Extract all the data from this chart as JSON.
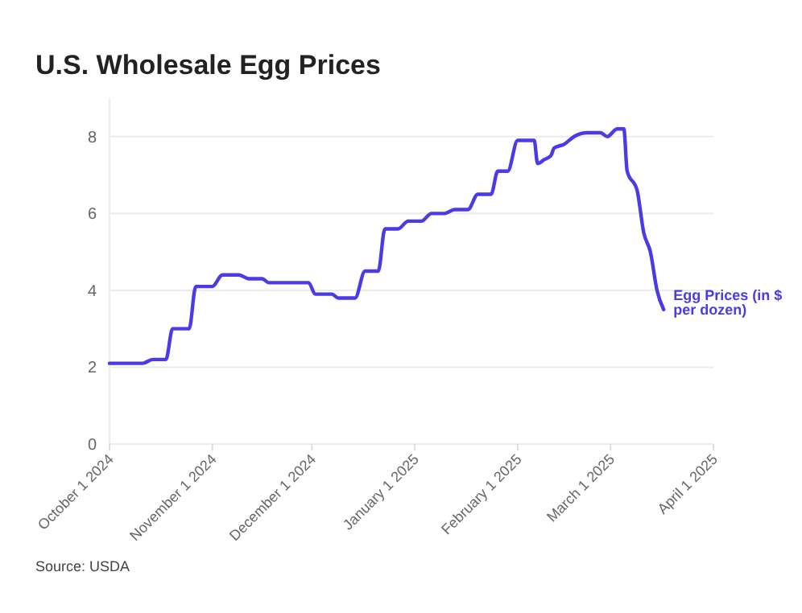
{
  "chart_data": {
    "type": "line",
    "title": "U.S. Wholesale Egg Prices",
    "x": [
      "2024-10-01",
      "2024-10-11",
      "2024-10-14",
      "2024-10-18",
      "2024-10-20",
      "2024-10-25",
      "2024-10-27",
      "2024-11-01",
      "2024-11-04",
      "2024-11-09",
      "2024-11-12",
      "2024-11-16",
      "2024-11-18",
      "2024-11-30",
      "2024-12-02",
      "2024-12-07",
      "2024-12-09",
      "2024-12-14",
      "2024-12-17",
      "2024-12-21",
      "2024-12-23",
      "2024-12-27",
      "2024-12-30",
      "2025-01-03",
      "2025-01-06",
      "2025-01-10",
      "2025-01-13",
      "2025-01-17",
      "2025-01-20",
      "2025-01-24",
      "2025-01-26",
      "2025-01-29",
      "2025-02-01",
      "2025-02-06",
      "2025-02-07",
      "2025-02-09",
      "2025-02-11",
      "2025-02-12",
      "2025-02-15",
      "2025-02-18",
      "2025-02-22",
      "2025-02-26",
      "2025-02-28",
      "2025-03-03",
      "2025-03-05",
      "2025-03-06",
      "2025-03-09",
      "2025-03-11",
      "2025-03-13",
      "2025-03-15",
      "2025-03-17"
    ],
    "series": [
      {
        "name": "Egg Prices (in $ per dozen)",
        "color": "#4b3be6",
        "values": [
          2.1,
          2.1,
          2.2,
          2.2,
          3.0,
          3.0,
          4.1,
          4.1,
          4.4,
          4.4,
          4.3,
          4.3,
          4.2,
          4.2,
          3.9,
          3.9,
          3.8,
          3.8,
          4.5,
          4.5,
          5.6,
          5.6,
          5.8,
          5.8,
          6.0,
          6.0,
          6.1,
          6.1,
          6.5,
          6.5,
          7.1,
          7.1,
          7.9,
          7.9,
          7.3,
          7.4,
          7.5,
          7.7,
          7.8,
          8.0,
          8.1,
          8.1,
          8.0,
          8.2,
          8.2,
          7.1,
          6.6,
          5.5,
          5.0,
          4.0,
          3.5
        ]
      }
    ],
    "xlim": [
      "2024-10-01",
      "2025-04-01"
    ],
    "xticks": [
      {
        "value": "2024-10-01",
        "label": "October 1 2024"
      },
      {
        "value": "2024-11-01",
        "label": "November 1 2024"
      },
      {
        "value": "2024-12-01",
        "label": "December 1 2024"
      },
      {
        "value": "2025-01-01",
        "label": "January 1 2025"
      },
      {
        "value": "2025-02-01",
        "label": "February 1 2025"
      },
      {
        "value": "2025-03-01",
        "label": "March 1 2025"
      },
      {
        "value": "2025-04-01",
        "label": "April 1 2025"
      }
    ],
    "ylim": [
      0,
      9
    ],
    "yticks": [
      0,
      2,
      4,
      6,
      8
    ],
    "grid": "y",
    "marker": "none",
    "line_style": "solid",
    "annotations": [
      "Source: USDA"
    ]
  }
}
